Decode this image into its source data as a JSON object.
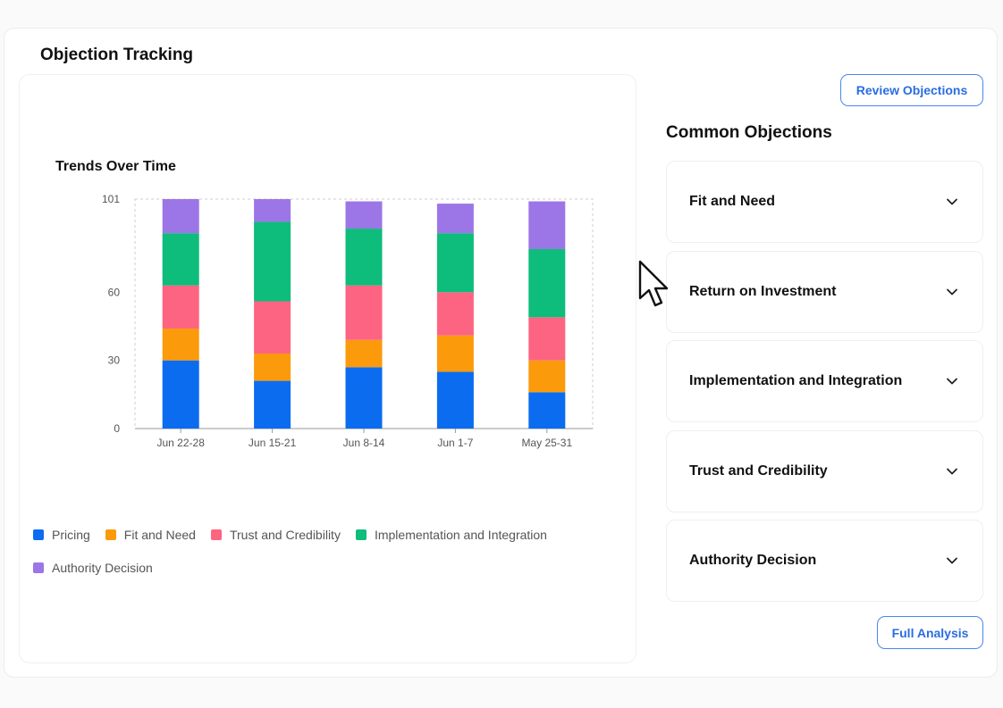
{
  "header": {
    "title": "Objection Tracking"
  },
  "chart_section": {
    "title": "Trends Over Time"
  },
  "buttons": {
    "review": "Review Objections",
    "full_analysis": "Full Analysis"
  },
  "objections": {
    "title": "Common Objections",
    "items": [
      {
        "label": "Fit and Need"
      },
      {
        "label": "Return on Investment"
      },
      {
        "label": "Implementation and Integration"
      },
      {
        "label": "Trust and Credibility"
      },
      {
        "label": "Authority Decision"
      }
    ]
  },
  "chart_data": {
    "type": "bar",
    "stacked": true,
    "categories": [
      "Jun 22-28",
      "Jun 15-21",
      "Jun 8-14",
      "Jun 1-7",
      "May 25-31"
    ],
    "series": [
      {
        "name": "Pricing",
        "color": "#0b6cf0",
        "values": [
          30,
          21,
          27,
          25,
          16
        ]
      },
      {
        "name": "Fit and Need",
        "color": "#fb9a0b",
        "values": [
          14,
          12,
          12,
          16,
          14
        ]
      },
      {
        "name": "Trust and Credibility",
        "color": "#fd6481",
        "values": [
          19,
          23,
          24,
          19,
          19
        ]
      },
      {
        "name": "Implementation and Integration",
        "color": "#0ebc7b",
        "values": [
          23,
          35,
          25,
          26,
          30
        ]
      },
      {
        "name": "Authority Decision",
        "color": "#9c76e6",
        "values": [
          15,
          10,
          12,
          13,
          21
        ]
      }
    ],
    "yticks": [
      0,
      30,
      60,
      101
    ],
    "ylim": [
      0,
      101
    ],
    "grid": "dashed border",
    "legend": "bottom"
  }
}
